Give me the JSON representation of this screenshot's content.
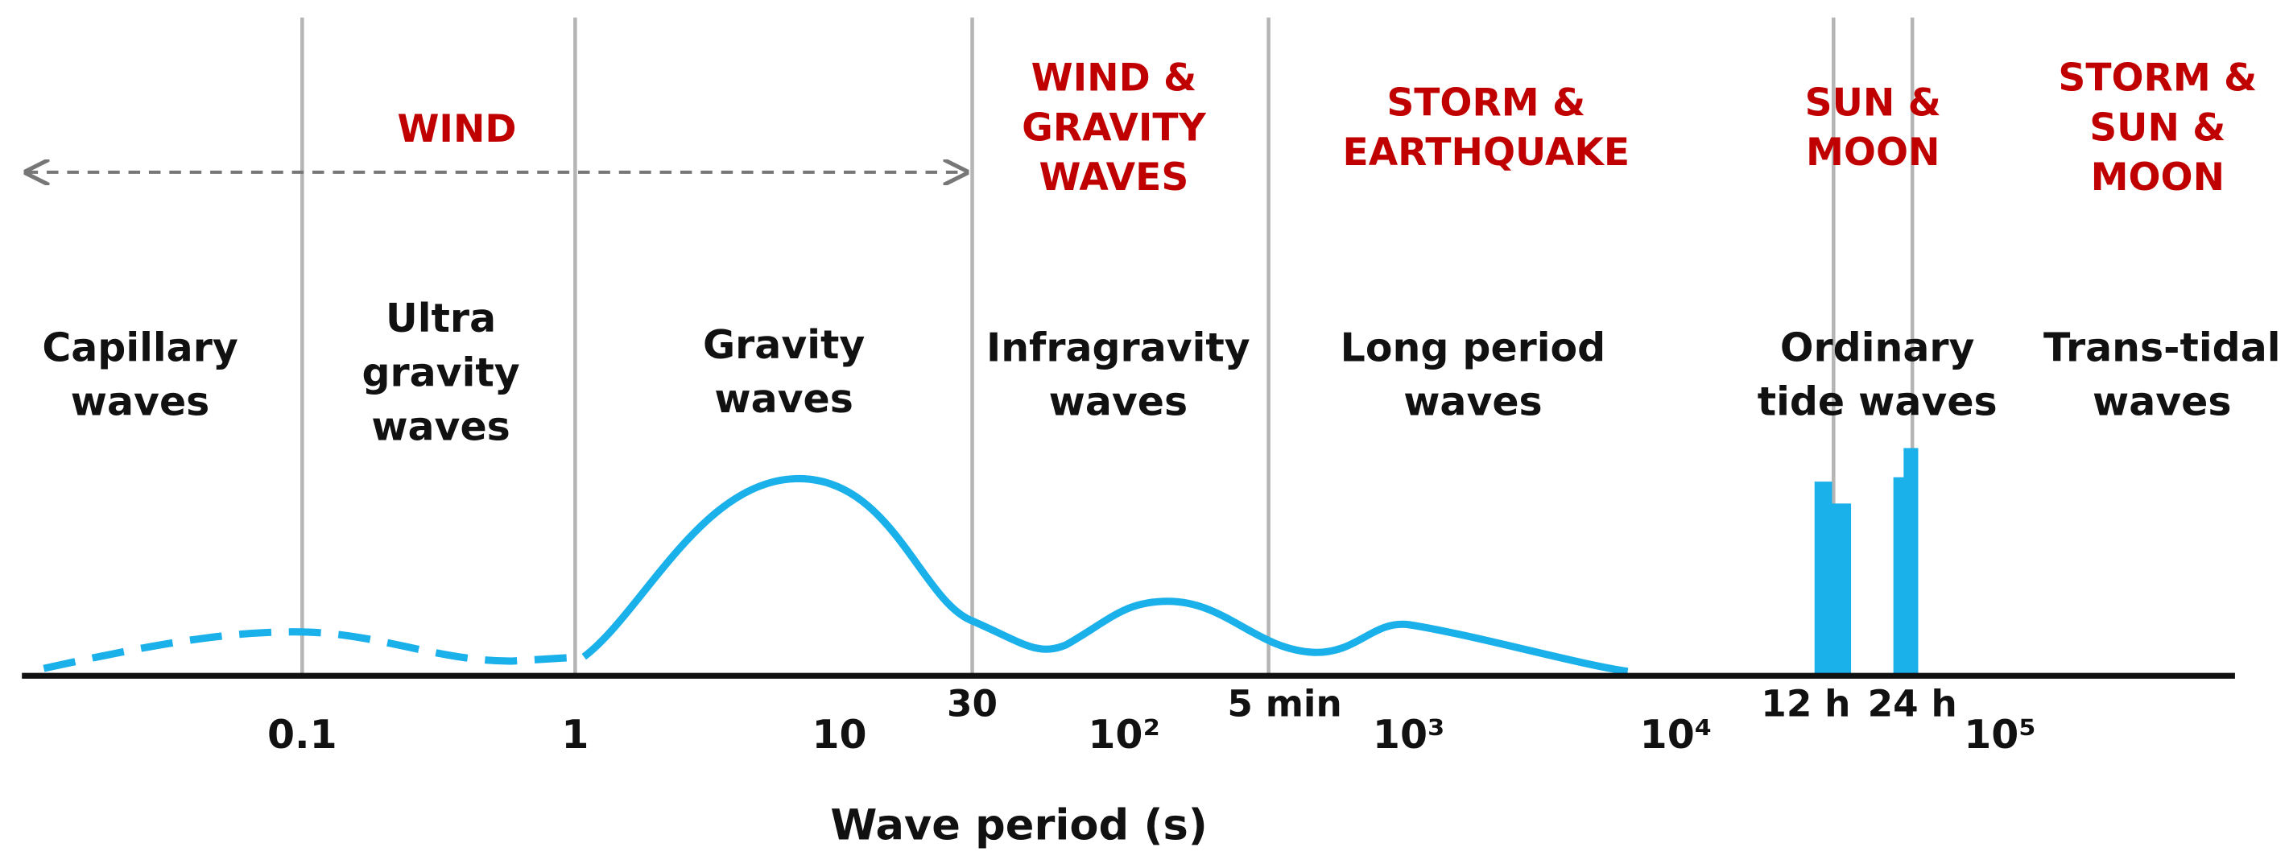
{
  "forcing": [
    {
      "lines": [
        "WIND"
      ]
    },
    {
      "lines": [
        "WIND &",
        "GRAVITY",
        "WAVES"
      ]
    },
    {
      "lines": [
        "STORM &",
        "EARTHQUAKE"
      ]
    },
    {
      "lines": [
        "SUN &",
        "MOON"
      ]
    },
    {
      "lines": [
        "STORM &",
        "SUN &",
        "MOON"
      ]
    }
  ],
  "wave_types": [
    {
      "lines": [
        "Capillary",
        "waves"
      ]
    },
    {
      "lines": [
        "Ultra",
        "gravity",
        "waves"
      ]
    },
    {
      "lines": [
        "Gravity",
        "waves"
      ]
    },
    {
      "lines": [
        "Infragravity",
        "waves"
      ]
    },
    {
      "lines": [
        "Long period",
        "waves"
      ]
    },
    {
      "lines": [
        "Ordinary",
        "tide waves"
      ]
    },
    {
      "lines": [
        "Trans-tidal",
        "waves"
      ]
    }
  ],
  "axis": {
    "ticks": [
      "0.1",
      "1",
      "10",
      "10²",
      "10³",
      "10⁴",
      "10⁵"
    ],
    "markers": [
      "30",
      "5 min",
      "12 h",
      "24 h"
    ],
    "title": "Wave period (s)"
  }
}
